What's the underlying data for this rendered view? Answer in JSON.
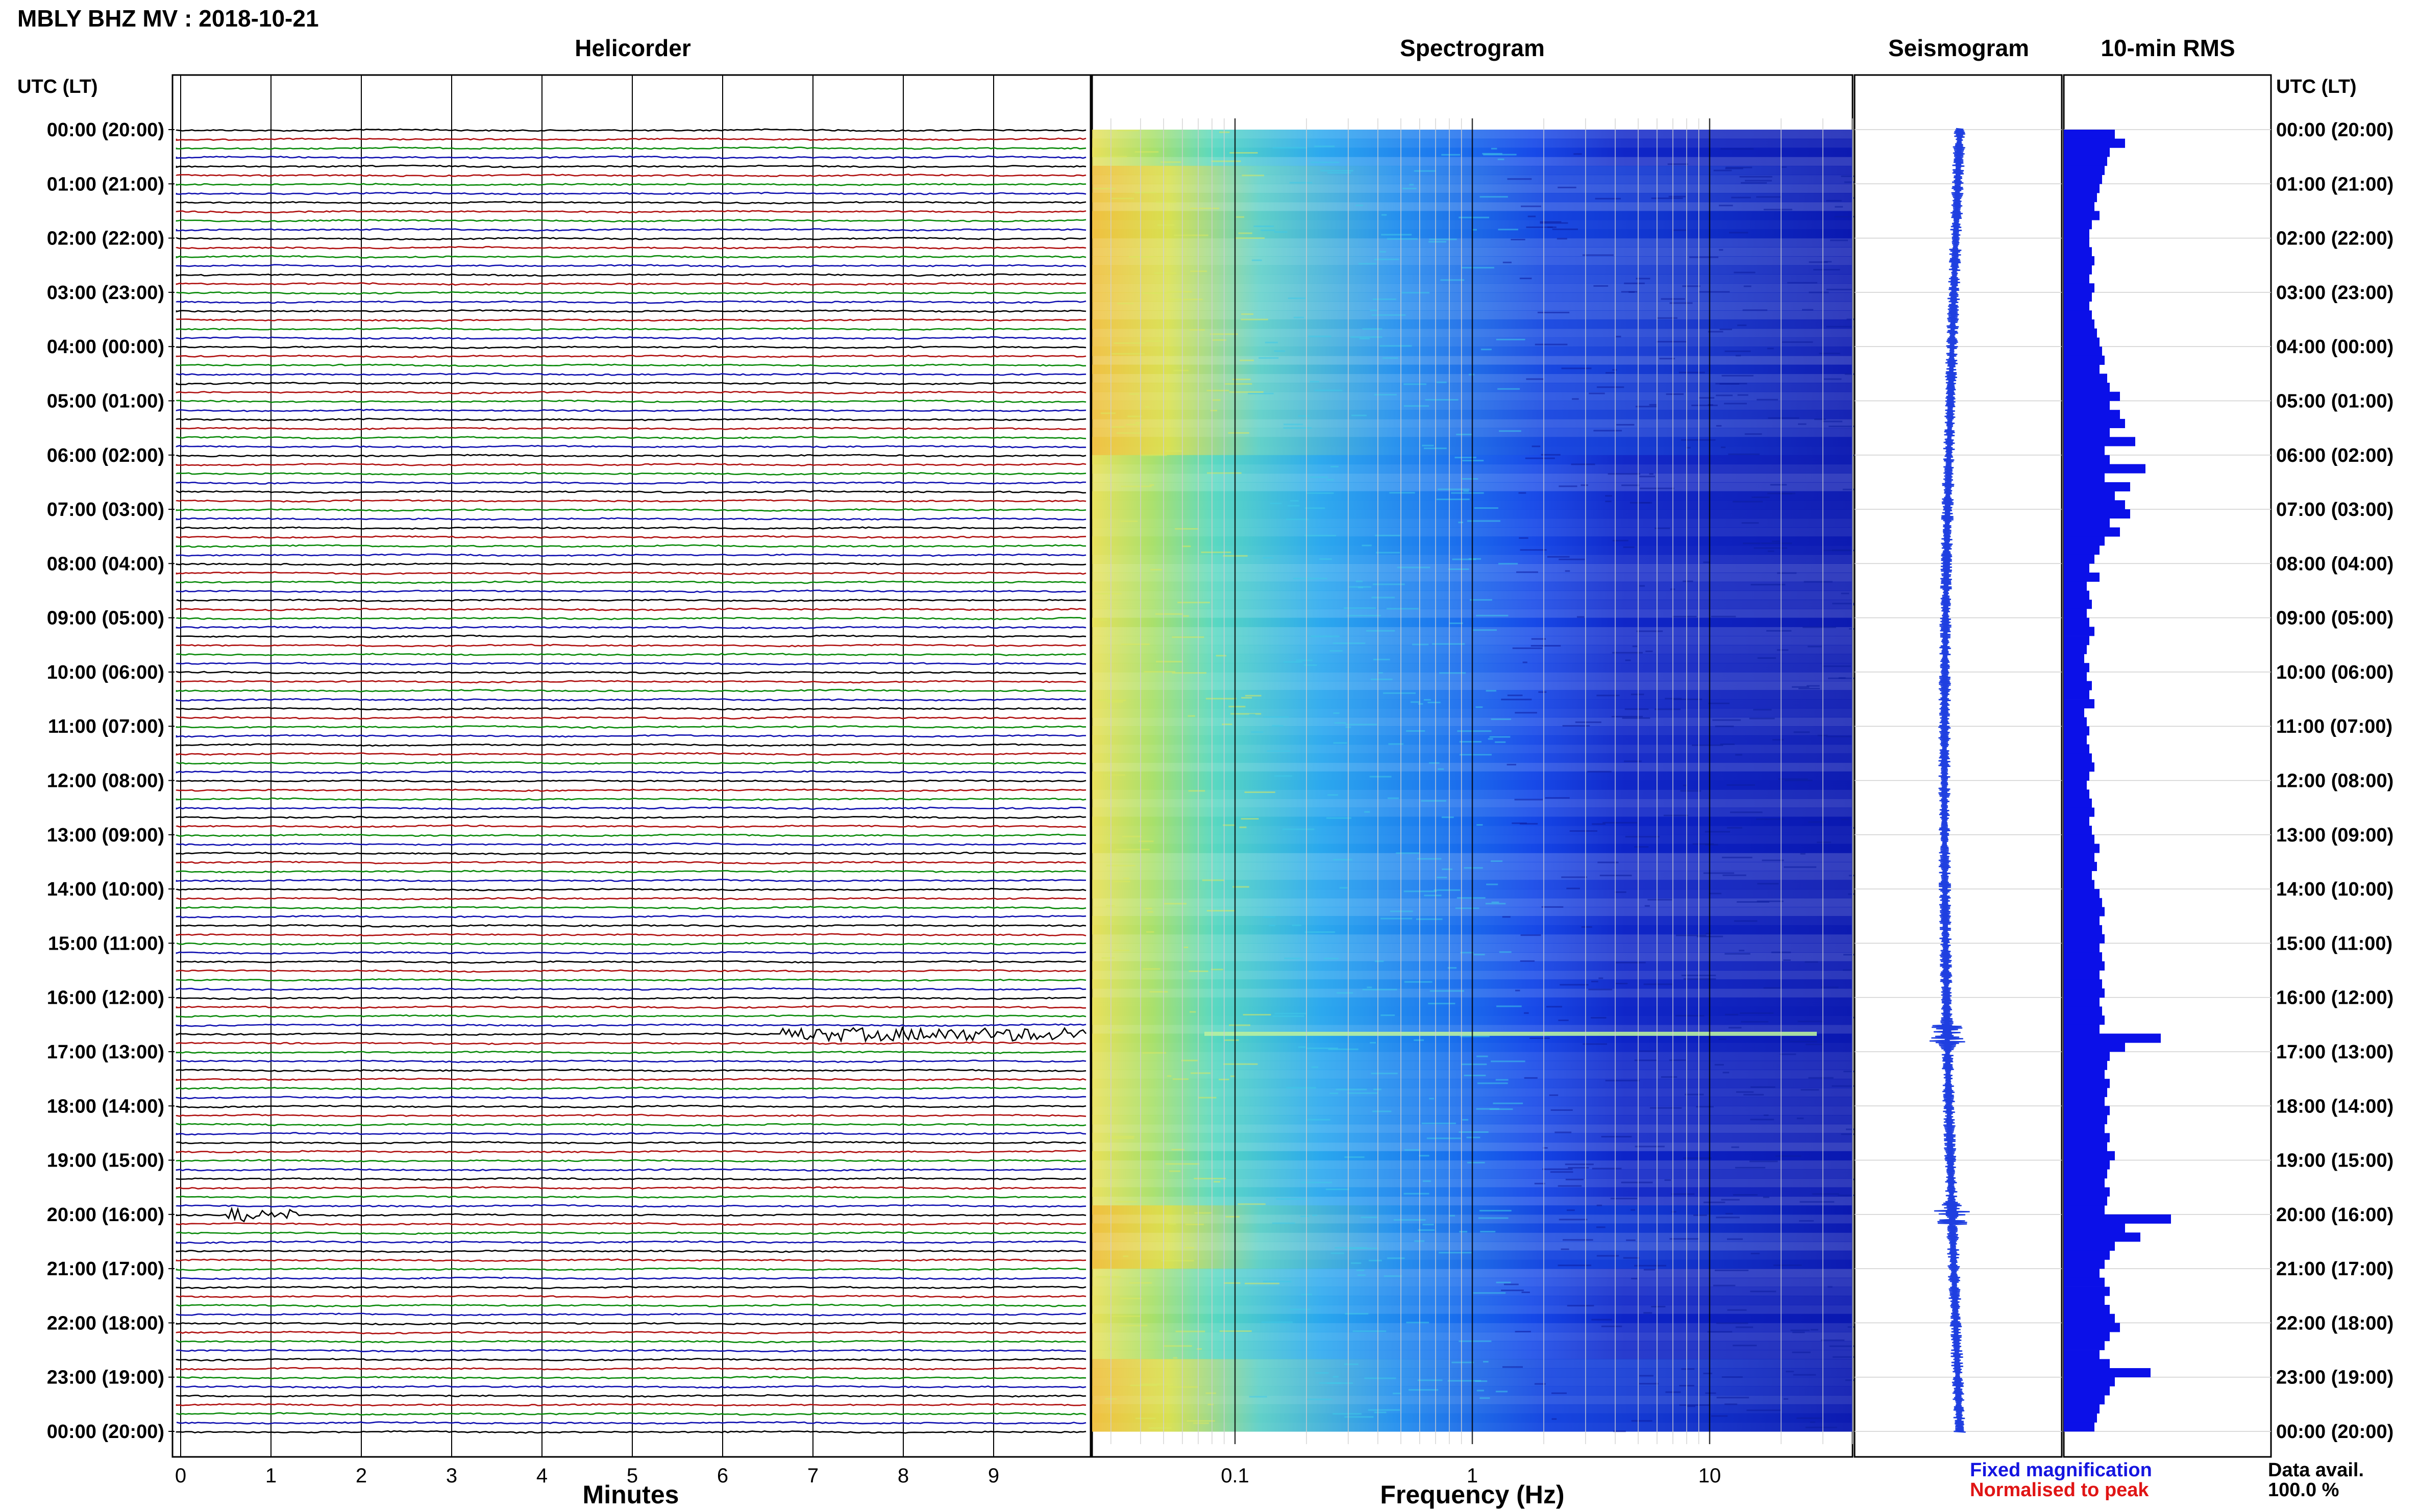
{
  "header": {
    "title": "MBLY BHZ MV : 2018-10-21",
    "panels": [
      "Helicorder",
      "Spectrogram",
      "Seismogram",
      "10-min RMS"
    ],
    "left_axis_title": "UTC (LT)",
    "right_axis_title": "UTC (LT)"
  },
  "footer": {
    "xlabel_helicorder": "Minutes",
    "xlabel_spectrogram": "Frequency (Hz)",
    "legend_fixed": "Fixed magnification",
    "legend_normalised": "Normalised to peak",
    "data_avail_label": "Data avail.",
    "data_avail_value": "100.0 %"
  },
  "colors": {
    "legend_fixed": "#1515e0",
    "legend_normalised": "#e01515",
    "trace_cycle": [
      "#000000",
      "#b01010",
      "#0a8a0a",
      "#1010b0"
    ],
    "seismogram": "#1f3fe0",
    "rms_bar": "#0b10e8",
    "grid": "#c8c8c8"
  },
  "time_labels": [
    "00:00 (20:00)",
    "01:00 (21:00)",
    "02:00 (22:00)",
    "03:00 (23:00)",
    "04:00 (00:00)",
    "05:00 (01:00)",
    "06:00 (02:00)",
    "07:00 (03:00)",
    "08:00 (04:00)",
    "09:00 (05:00)",
    "10:00 (06:00)",
    "11:00 (07:00)",
    "12:00 (08:00)",
    "13:00 (09:00)",
    "14:00 (10:00)",
    "15:00 (11:00)",
    "16:00 (12:00)",
    "17:00 (13:00)",
    "18:00 (14:00)",
    "19:00 (15:00)",
    "20:00 (16:00)",
    "21:00 (17:00)",
    "22:00 (18:00)",
    "23:00 (19:00)",
    "00:00 (20:00)"
  ],
  "chart_data": [
    {
      "type": "line",
      "panel": "Helicorder",
      "xlabel": "Minutes",
      "x_ticks": [
        "0",
        "1",
        "2",
        "3",
        "4",
        "5",
        "6",
        "7",
        "8",
        "9"
      ],
      "xlim": [
        0,
        10
      ],
      "rows": 144,
      "events": [
        {
          "hour": 16.67,
          "minute_start": 6.6,
          "minute_end": 10.0,
          "note": "large green burst"
        },
        {
          "hour": 20.0,
          "minute_start": 0.5,
          "minute_end": 1.3,
          "note": "spike"
        }
      ]
    },
    {
      "type": "heatmap",
      "panel": "Spectrogram",
      "xlabel": "Frequency (Hz)",
      "x_ticks": [
        "0.1",
        "1",
        "10"
      ],
      "x_scale": "log",
      "xlim": [
        0.025,
        40
      ]
    },
    {
      "type": "line",
      "panel": "Seismogram",
      "envelope_peaks_hours": [
        16.67,
        20.0
      ]
    },
    {
      "type": "bar",
      "panel": "10-min RMS",
      "orientation": "horizontal",
      "bins": 144,
      "values": [
        1.0,
        1.2,
        0.9,
        0.85,
        0.8,
        0.75,
        0.7,
        0.65,
        0.6,
        0.7,
        0.55,
        0.5,
        0.5,
        0.55,
        0.6,
        0.55,
        0.5,
        0.6,
        0.55,
        0.5,
        0.55,
        0.6,
        0.65,
        0.7,
        0.75,
        0.8,
        0.7,
        0.85,
        0.9,
        1.1,
        0.9,
        1.1,
        1.2,
        0.9,
        1.4,
        0.8,
        0.9,
        1.6,
        0.8,
        1.3,
        1.0,
        1.2,
        1.3,
        0.9,
        1.1,
        0.8,
        0.7,
        0.6,
        0.5,
        0.7,
        0.45,
        0.5,
        0.55,
        0.45,
        0.5,
        0.6,
        0.5,
        0.45,
        0.4,
        0.5,
        0.45,
        0.55,
        0.5,
        0.6,
        0.4,
        0.45,
        0.5,
        0.45,
        0.5,
        0.55,
        0.6,
        0.5,
        0.45,
        0.5,
        0.55,
        0.6,
        0.5,
        0.55,
        0.6,
        0.7,
        0.6,
        0.65,
        0.55,
        0.6,
        0.7,
        0.75,
        0.8,
        0.7,
        0.75,
        0.8,
        0.7,
        0.75,
        0.8,
        0.7,
        0.75,
        0.8,
        0.7,
        0.75,
        0.8,
        0.7,
        1.9,
        1.2,
        0.9,
        0.85,
        0.8,
        0.9,
        0.85,
        0.8,
        0.9,
        0.85,
        0.8,
        0.9,
        0.85,
        1.0,
        0.9,
        0.85,
        0.8,
        0.9,
        0.85,
        0.8,
        2.1,
        1.2,
        1.5,
        1.0,
        0.9,
        0.8,
        0.7,
        0.8,
        0.9,
        0.8,
        0.9,
        1.0,
        1.1,
        0.9,
        0.8,
        0.7,
        0.9,
        1.7,
        1.0,
        0.9,
        0.8,
        0.7,
        0.65,
        0.6
      ]
    }
  ]
}
